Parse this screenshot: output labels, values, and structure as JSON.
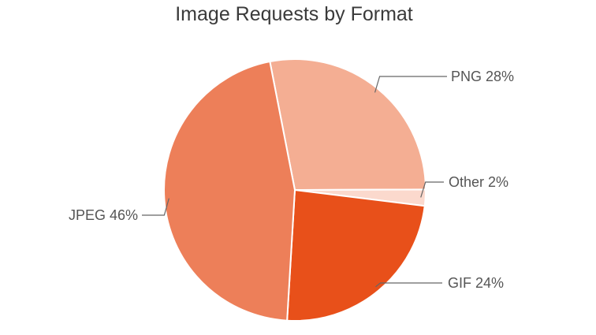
{
  "chart_data": {
    "type": "pie",
    "title": "Image Requests by Format",
    "slices": [
      {
        "name": "PNG",
        "value": 28,
        "label": "PNG 28%",
        "color": "#f4ae93"
      },
      {
        "name": "Other",
        "value": 2,
        "label": "Other 2%",
        "color": "#fbd9cd"
      },
      {
        "name": "GIF",
        "value": 24,
        "label": "GIF 24%",
        "color": "#e8501a"
      },
      {
        "name": "JPEG",
        "value": 46,
        "label": "JPEG 46%",
        "color": "#ed7f59"
      }
    ],
    "legend": "none"
  }
}
